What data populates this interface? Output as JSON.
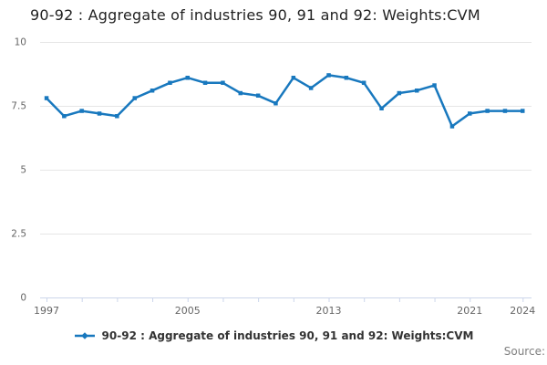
{
  "title": "90-92 : Aggregate of industries 90, 91 and 92: Weights:CVM",
  "legend": {
    "label": "90-92 : Aggregate of industries 90, 91 and 92: Weights:CVM"
  },
  "source": {
    "label": "Source:"
  },
  "colors": {
    "line": "#1878be",
    "grid": "#e6e6e6",
    "axis": "#ccd6eb",
    "tick_label": "#666666",
    "title_text": "#222222",
    "legend_text": "#333333",
    "source_text": "#808080",
    "background": "#ffffff"
  },
  "chart_data": {
    "type": "line",
    "title": "90-92 : Aggregate of industries 90, 91 and 92: Weights:CVM",
    "x": [
      1997,
      1998,
      1999,
      2000,
      2001,
      2002,
      2003,
      2004,
      2005,
      2006,
      2007,
      2008,
      2009,
      2010,
      2011,
      2012,
      2013,
      2014,
      2015,
      2016,
      2017,
      2018,
      2019,
      2020,
      2021,
      2022,
      2023,
      2024
    ],
    "series": [
      {
        "name": "90-92 : Aggregate of industries 90, 91 and 92: Weights:CVM",
        "values": [
          7.8,
          7.1,
          7.3,
          7.2,
          7.1,
          7.8,
          8.1,
          8.4,
          8.6,
          8.4,
          8.4,
          8.0,
          7.9,
          7.6,
          8.6,
          8.2,
          8.7,
          8.6,
          8.4,
          7.4,
          8.0,
          8.1,
          8.3,
          6.7,
          7.2,
          7.3,
          7.3,
          7.3
        ]
      }
    ],
    "xlabel": "",
    "ylabel": "",
    "ylim": [
      0,
      10
    ],
    "yticks": [
      0,
      2.5,
      5,
      7.5,
      10
    ],
    "ytick_labels": [
      "0",
      "2.5",
      "5",
      "7.5",
      "10"
    ],
    "xtick_label_years": [
      1997,
      2005,
      2013,
      2021,
      2024
    ],
    "xtick_mark_years": [
      1997,
      1999,
      2001,
      2003,
      2005,
      2007,
      2009,
      2011,
      2013,
      2015,
      2017,
      2019,
      2021,
      2024
    ],
    "grid": "horizontal",
    "legend_position": "bottom",
    "marker": "square"
  }
}
